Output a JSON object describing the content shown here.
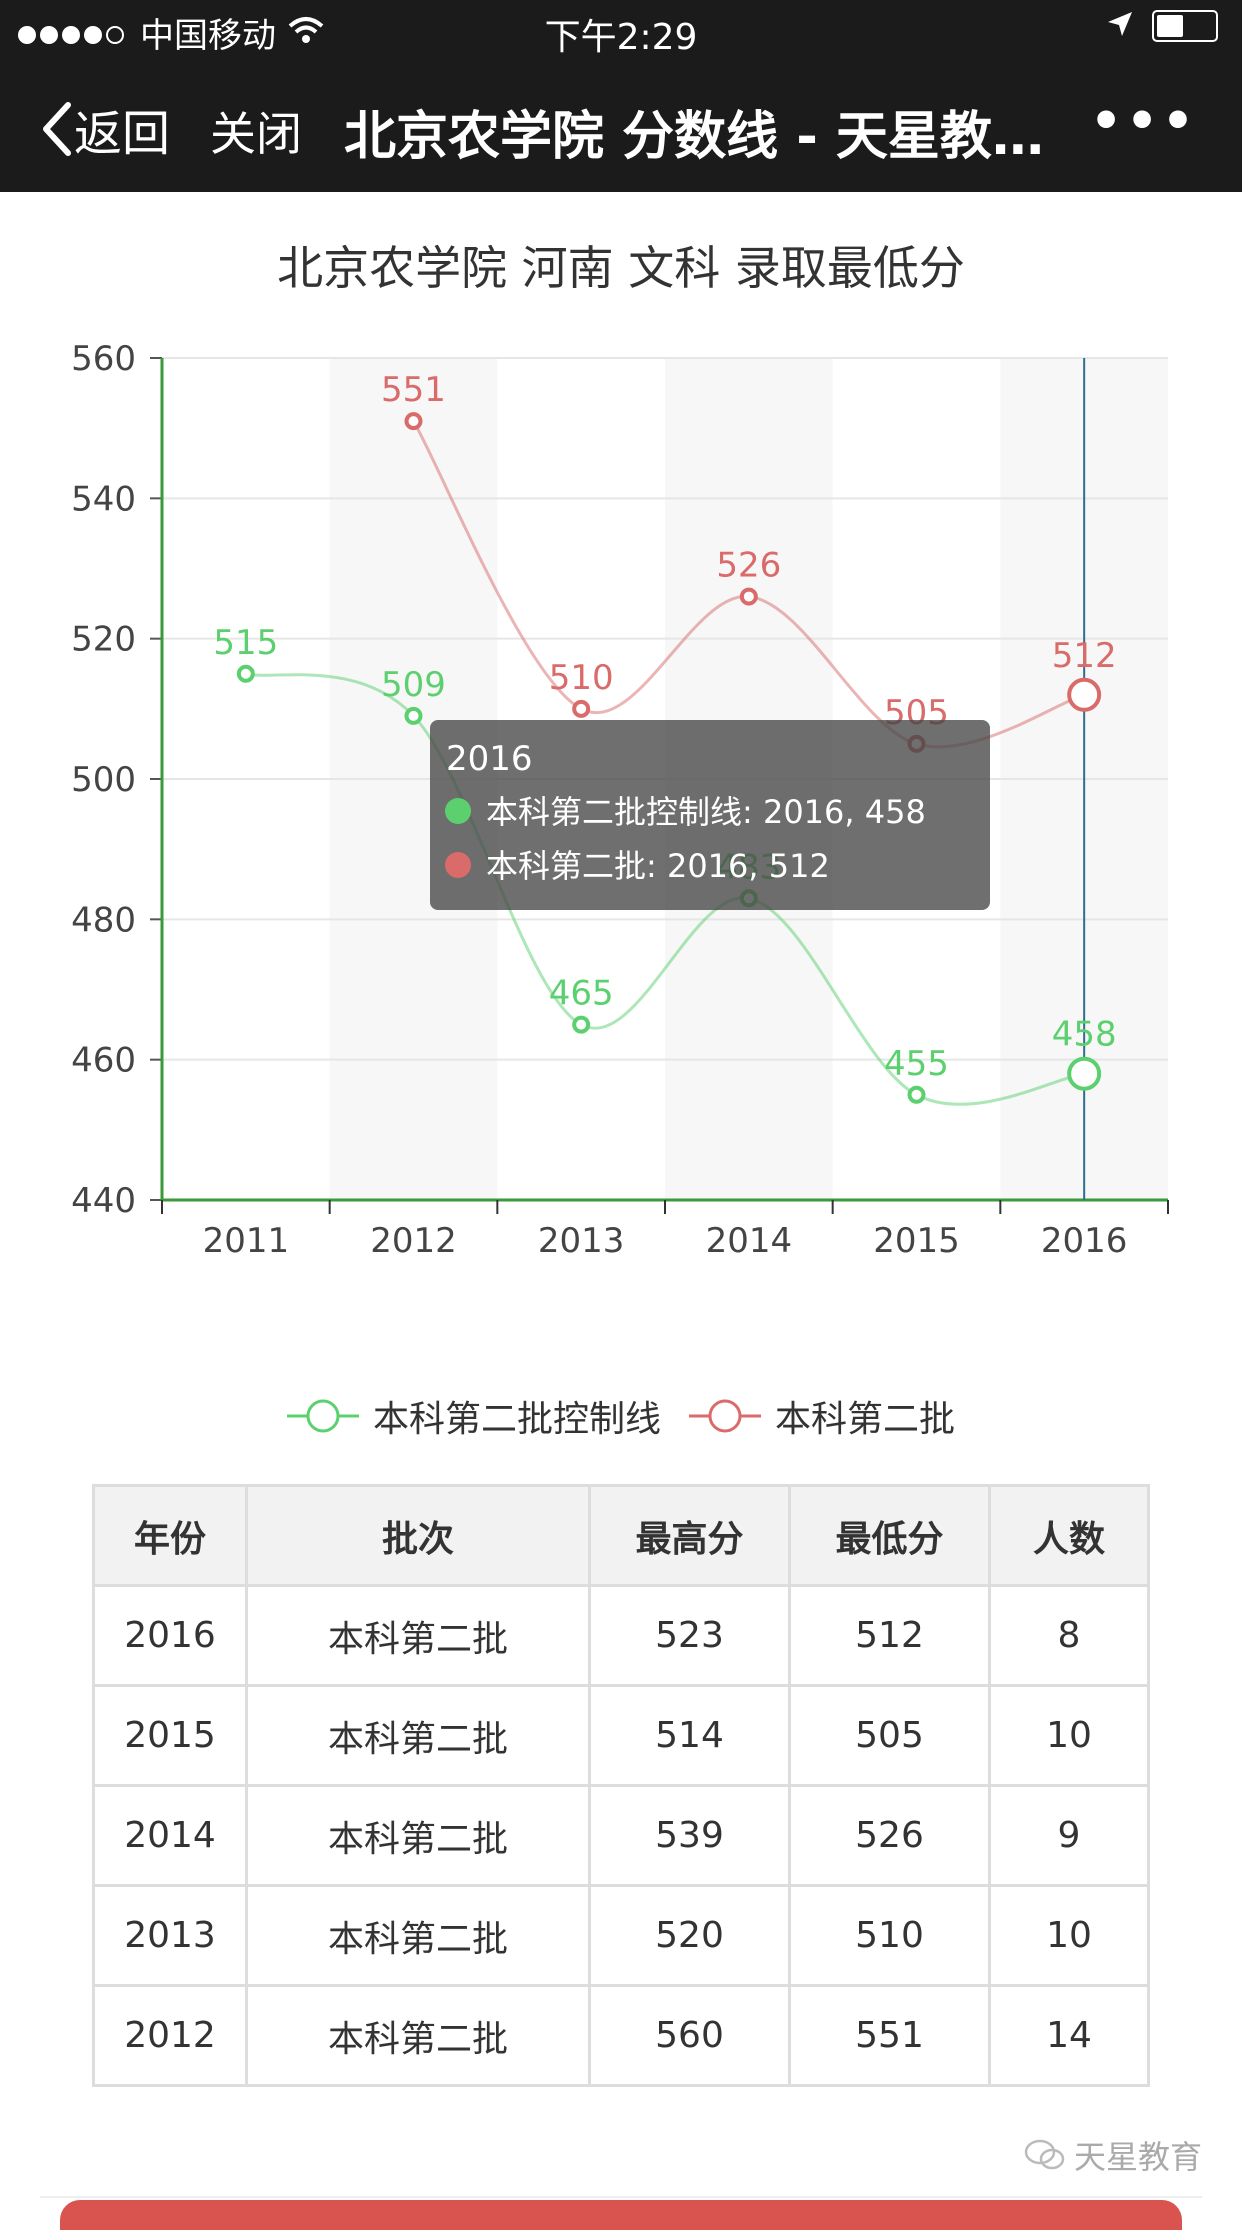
{
  "status": {
    "carrier": "中国移动",
    "time": "下午2:29"
  },
  "nav": {
    "back_label": "返回",
    "close_label": "关闭",
    "title": "北京农学院 分数线 - 天星教…",
    "more": "•••"
  },
  "colors": {
    "green": "#5cd06f",
    "red": "#d96b6b",
    "axis": "#3a9a3a",
    "marker": "#2f6d8f"
  },
  "chart_data": {
    "type": "line",
    "title": "北京农学院 河南 文科 录取最低分",
    "categories": [
      "2011",
      "2012",
      "2013",
      "2014",
      "2015",
      "2016"
    ],
    "ylim": [
      440,
      560
    ],
    "yticks": [
      440,
      460,
      480,
      500,
      520,
      540,
      560
    ],
    "series": [
      {
        "name": "本科第二批控制线",
        "color": "#5cd06f",
        "values": [
          515,
          509,
          465,
          483,
          455,
          458
        ]
      },
      {
        "name": "本科第二批",
        "color": "#d96b6b",
        "values": [
          null,
          551,
          510,
          526,
          505,
          512
        ]
      }
    ],
    "tooltip": {
      "title": "2016",
      "lines": [
        "本科第二批控制线: 2016, 458",
        "本科第二批: 2016, 512"
      ]
    },
    "grid": true,
    "legend_position": "bottom-center"
  },
  "table": {
    "headers": [
      "年份",
      "批次",
      "最高分",
      "最低分",
      "人数"
    ],
    "rows": [
      [
        "2016",
        "本科第二批",
        "523",
        "512",
        "8"
      ],
      [
        "2015",
        "本科第二批",
        "514",
        "505",
        "10"
      ],
      [
        "2014",
        "本科第二批",
        "539",
        "526",
        "9"
      ],
      [
        "2013",
        "本科第二批",
        "520",
        "510",
        "10"
      ],
      [
        "2012",
        "本科第二批",
        "560",
        "551",
        "14"
      ]
    ]
  },
  "watermark": "天星教育"
}
